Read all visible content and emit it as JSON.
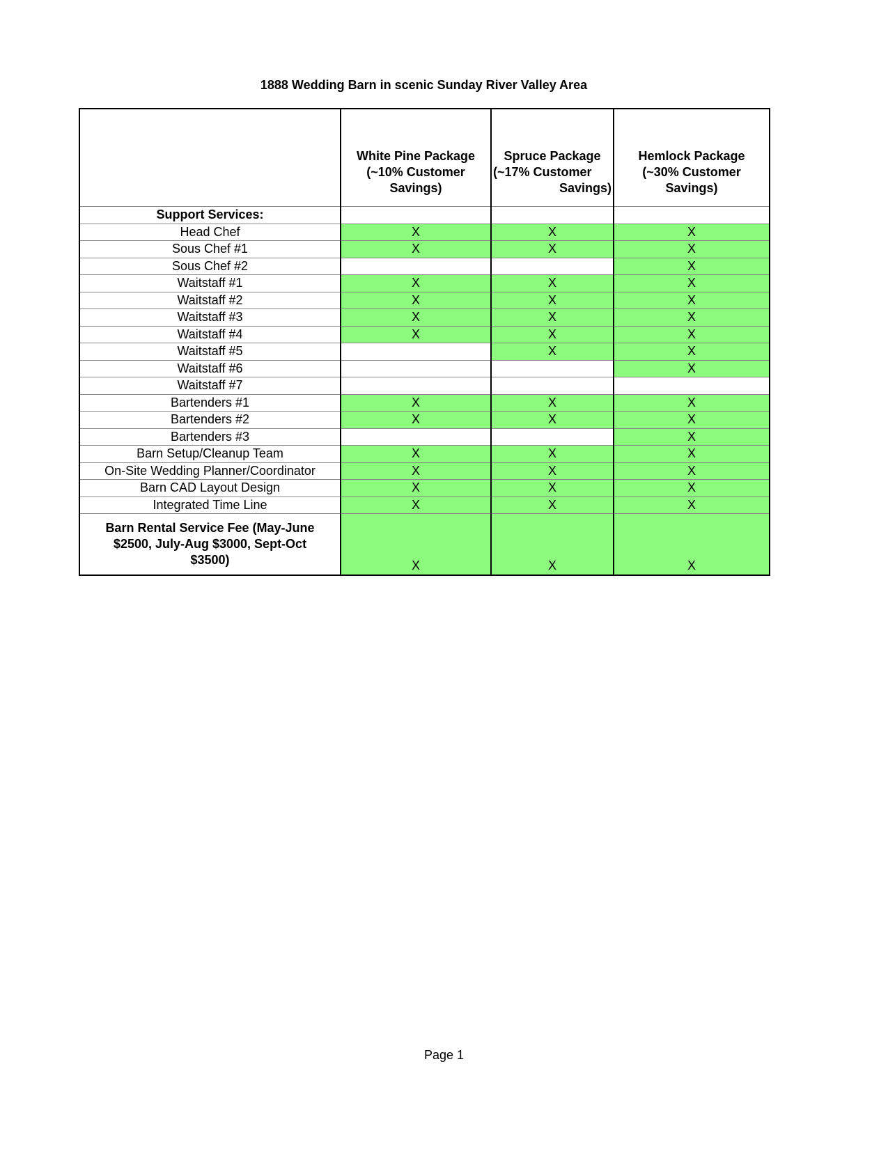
{
  "page": {
    "title": "1888 Wedding Barn in scenic Sunday River Valley Area",
    "footer": "Page 1"
  },
  "table": {
    "mark": "X",
    "colors": {
      "cell_green": "#8cfa7d",
      "grid_line_gray": "#878787",
      "grid_line_black": "#000000"
    },
    "columns": [
      {
        "id": "service",
        "lines": [
          "",
          "",
          ""
        ]
      },
      {
        "id": "white-pine",
        "lines": [
          "White Pine Package",
          "(~10% Customer",
          "Savings)"
        ]
      },
      {
        "id": "spruce",
        "lines": [
          "Spruce Package",
          "(~17% Customer",
          "Savings)"
        ]
      },
      {
        "id": "hemlock",
        "lines": [
          "Hemlock Package",
          "(~30% Customer",
          "Savings)"
        ]
      }
    ],
    "rows": [
      {
        "label": "Support Services:",
        "bold": true,
        "tall": false,
        "cells": [
          false,
          false,
          false
        ]
      },
      {
        "label": "Head Chef",
        "bold": false,
        "tall": false,
        "cells": [
          true,
          true,
          true
        ]
      },
      {
        "label": "Sous Chef #1",
        "bold": false,
        "tall": false,
        "cells": [
          true,
          true,
          true
        ]
      },
      {
        "label": "Sous Chef #2",
        "bold": false,
        "tall": false,
        "cells": [
          false,
          false,
          true
        ]
      },
      {
        "label": "Waitstaff #1",
        "bold": false,
        "tall": false,
        "cells": [
          true,
          true,
          true
        ]
      },
      {
        "label": "Waitstaff #2",
        "bold": false,
        "tall": false,
        "cells": [
          true,
          true,
          true
        ]
      },
      {
        "label": "Waitstaff #3",
        "bold": false,
        "tall": false,
        "cells": [
          true,
          true,
          true
        ]
      },
      {
        "label": "Waitstaff #4",
        "bold": false,
        "tall": false,
        "cells": [
          true,
          true,
          true
        ]
      },
      {
        "label": "Waitstaff #5",
        "bold": false,
        "tall": false,
        "cells": [
          false,
          true,
          true
        ]
      },
      {
        "label": "Waitstaff #6",
        "bold": false,
        "tall": false,
        "cells": [
          false,
          false,
          true
        ]
      },
      {
        "label": "Waitstaff #7",
        "bold": false,
        "tall": false,
        "cells": [
          false,
          false,
          false
        ]
      },
      {
        "label": "Bartenders #1",
        "bold": false,
        "tall": false,
        "cells": [
          true,
          true,
          true
        ]
      },
      {
        "label": "Bartenders #2",
        "bold": false,
        "tall": false,
        "cells": [
          true,
          true,
          true
        ]
      },
      {
        "label": "Bartenders #3",
        "bold": false,
        "tall": false,
        "cells": [
          false,
          false,
          true
        ]
      },
      {
        "label": "Barn Setup/Cleanup Team",
        "bold": false,
        "tall": false,
        "cells": [
          true,
          true,
          true
        ]
      },
      {
        "label": "On-Site Wedding Planner/Coordinator",
        "bold": false,
        "tall": false,
        "cells": [
          true,
          true,
          true
        ]
      },
      {
        "label": "Barn CAD Layout Design",
        "bold": false,
        "tall": false,
        "cells": [
          true,
          true,
          true
        ]
      },
      {
        "label": "Integrated Time Line",
        "bold": false,
        "tall": false,
        "cells": [
          true,
          true,
          true
        ]
      },
      {
        "label": "Barn Rental Service Fee (May-June $2500, July-Aug $3000, Sept-Oct $3500)",
        "bold": true,
        "tall": true,
        "cells": [
          true,
          true,
          true
        ]
      }
    ]
  }
}
